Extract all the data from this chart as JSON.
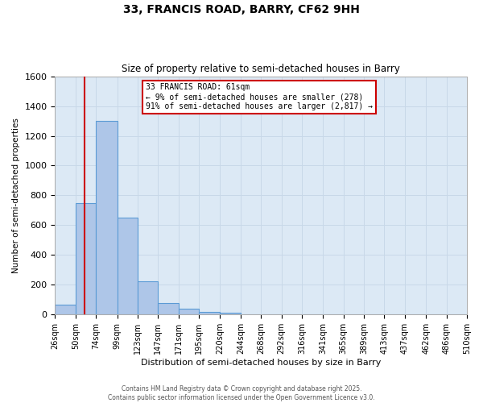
{
  "title": "33, FRANCIS ROAD, BARRY, CF62 9HH",
  "subtitle": "Size of property relative to semi-detached houses in Barry",
  "xlabel": "Distribution of semi-detached houses by size in Barry",
  "ylabel": "Number of semi-detached properties",
  "bin_labels": [
    "26sqm",
    "50sqm",
    "74sqm",
    "99sqm",
    "123sqm",
    "147sqm",
    "171sqm",
    "195sqm",
    "220sqm",
    "244sqm",
    "268sqm",
    "292sqm",
    "316sqm",
    "341sqm",
    "365sqm",
    "389sqm",
    "413sqm",
    "437sqm",
    "462sqm",
    "486sqm",
    "510sqm"
  ],
  "bar_values": [
    65,
    750,
    1300,
    650,
    225,
    80,
    40,
    20,
    15,
    0,
    0,
    0,
    0,
    0,
    0,
    0,
    0,
    0,
    0,
    0
  ],
  "bar_color": "#aec6e8",
  "bar_edge_color": "#5b9bd5",
  "ylim": [
    0,
    1600
  ],
  "yticks": [
    0,
    200,
    400,
    600,
    800,
    1000,
    1200,
    1400,
    1600
  ],
  "bin_edges": [
    26,
    50,
    74,
    99,
    123,
    147,
    171,
    195,
    220,
    244,
    268,
    292,
    316,
    341,
    365,
    389,
    413,
    437,
    462,
    486,
    510
  ],
  "property_line_x": 61,
  "property_line_label": "33 FRANCIS ROAD: 61sqm",
  "annotation_line1": "← 9% of semi-detached houses are smaller (278)",
  "annotation_line2": "91% of semi-detached houses are larger (2,817) →",
  "annotation_box_color": "#ffffff",
  "annotation_box_edge": "#cc0000",
  "red_line_color": "#cc0000",
  "grid_color": "#c8d8e8",
  "plot_bg_color": "#dce9f5",
  "fig_bg_color": "#ffffff",
  "footer_line1": "Contains HM Land Registry data © Crown copyright and database right 2025.",
  "footer_line2": "Contains public sector information licensed under the Open Government Licence v3.0."
}
